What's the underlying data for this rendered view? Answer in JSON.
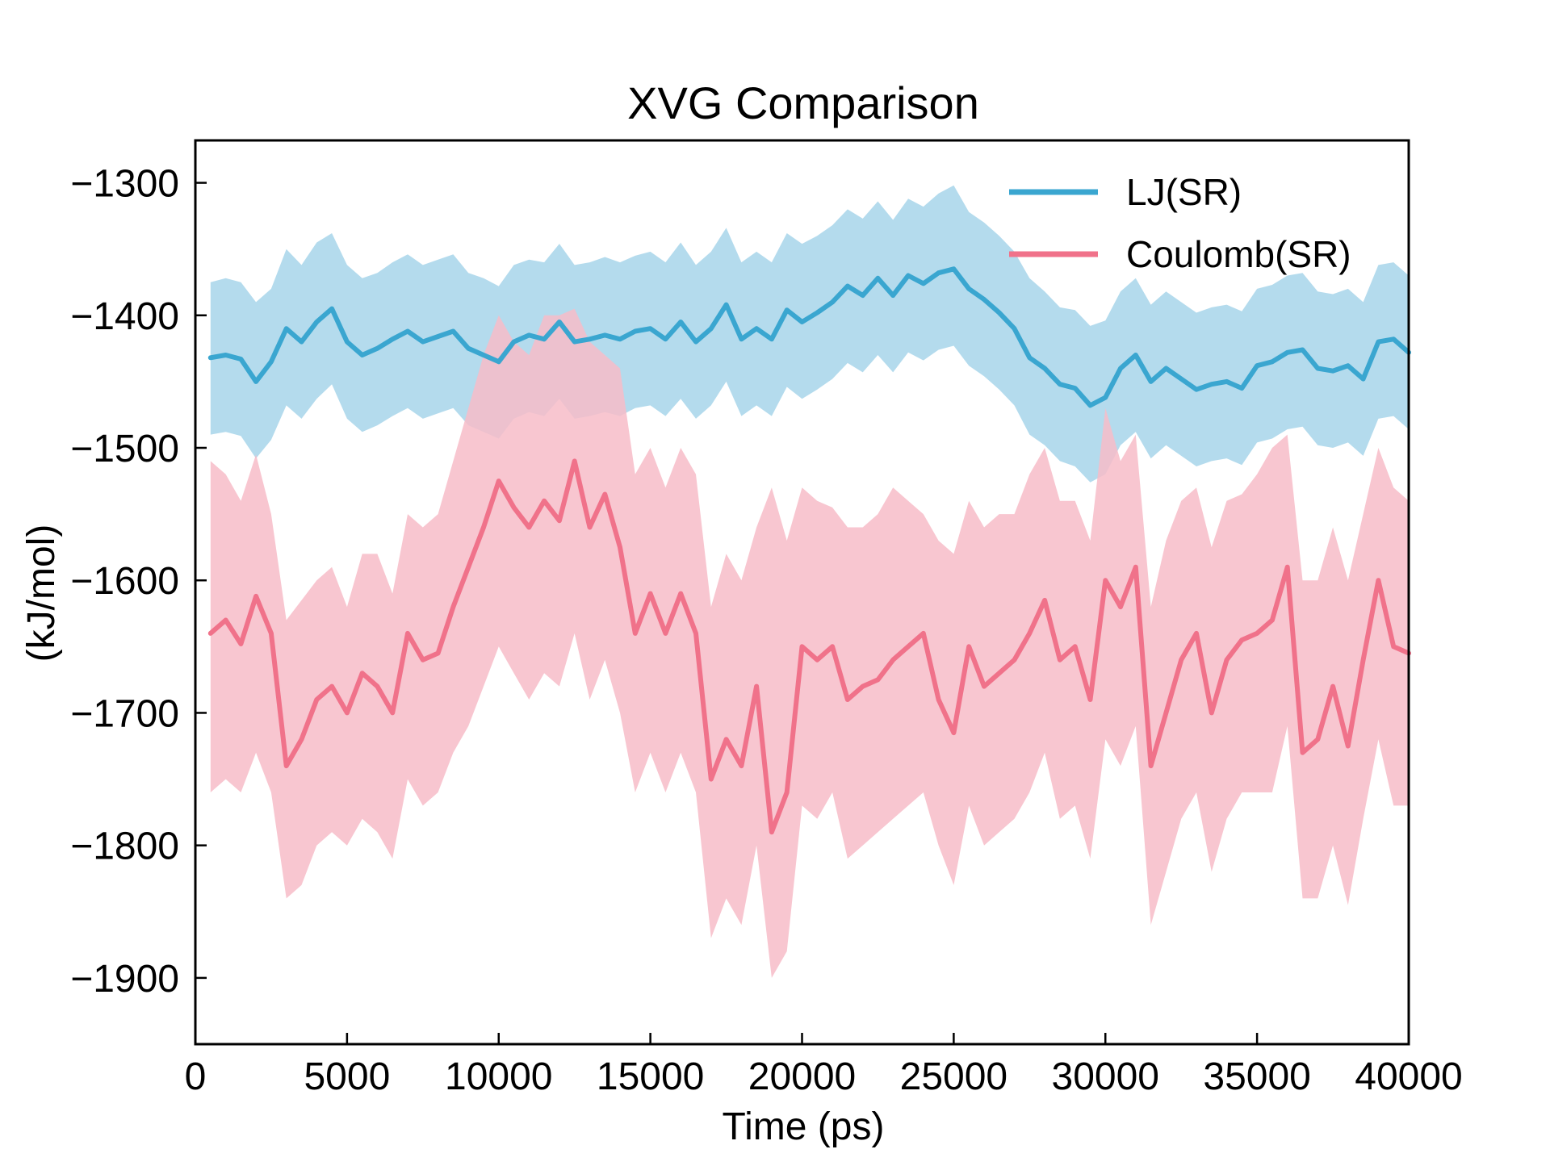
{
  "chart_data": {
    "type": "line",
    "title": "XVG Comparison",
    "xlabel": "Time (ps)",
    "ylabel": "(kJ/mol)",
    "xlim": [
      0,
      40000
    ],
    "ylim": [
      -1950,
      -1268
    ],
    "xticks": [
      0,
      5000,
      10000,
      15000,
      20000,
      25000,
      30000,
      35000,
      40000
    ],
    "xtick_labels": [
      "0",
      "5000",
      "10000",
      "15000",
      "20000",
      "25000",
      "30000",
      "35000",
      "40000"
    ],
    "yticks": [
      -1900,
      -1800,
      -1700,
      -1600,
      -1500,
      -1400,
      -1300
    ],
    "ytick_labels": [
      "−1900",
      "−1800",
      "−1700",
      "−1600",
      "−1500",
      "−1400",
      "−1300"
    ],
    "grid": false,
    "legend_position": "top-right",
    "series": [
      {
        "name": "LJ(SR)",
        "color": "#3aa6d0",
        "band_color": "#a7d5ea",
        "band_opacity": 0.85,
        "x": [
          500,
          1000,
          1500,
          2000,
          2500,
          3000,
          3500,
          4000,
          4500,
          5000,
          5500,
          6000,
          6500,
          7000,
          7500,
          8000,
          8500,
          9000,
          9500,
          10000,
          10500,
          11000,
          11500,
          12000,
          12500,
          13000,
          13500,
          14000,
          14500,
          15000,
          15500,
          16000,
          16500,
          17000,
          17500,
          18000,
          18500,
          19000,
          19500,
          20000,
          20500,
          21000,
          21500,
          22000,
          22500,
          23000,
          23500,
          24000,
          24500,
          25000,
          25500,
          26000,
          26500,
          27000,
          27500,
          28000,
          28500,
          29000,
          29500,
          30000,
          30500,
          31000,
          31500,
          32000,
          32500,
          33000,
          33500,
          34000,
          34500,
          35000,
          35500,
          36000,
          36500,
          37000,
          37500,
          38000,
          38500,
          39000,
          39500,
          40000
        ],
        "y": [
          -1432,
          -1430,
          -1433,
          -1450,
          -1435,
          -1410,
          -1420,
          -1405,
          -1395,
          -1420,
          -1430,
          -1425,
          -1418,
          -1412,
          -1420,
          -1416,
          -1412,
          -1425,
          -1430,
          -1435,
          -1420,
          -1415,
          -1418,
          -1405,
          -1420,
          -1418,
          -1415,
          -1418,
          -1412,
          -1410,
          -1418,
          -1405,
          -1420,
          -1410,
          -1392,
          -1418,
          -1410,
          -1418,
          -1396,
          -1405,
          -1398,
          -1390,
          -1378,
          -1385,
          -1372,
          -1385,
          -1370,
          -1376,
          -1368,
          -1365,
          -1380,
          -1388,
          -1398,
          -1410,
          -1432,
          -1440,
          -1452,
          -1455,
          -1468,
          -1462,
          -1440,
          -1430,
          -1450,
          -1440,
          -1448,
          -1456,
          -1452,
          -1450,
          -1455,
          -1438,
          -1435,
          -1428,
          -1426,
          -1440,
          -1442,
          -1438,
          -1448,
          -1420,
          -1418,
          -1428
        ],
        "upper": [
          -1375,
          -1372,
          -1375,
          -1390,
          -1380,
          -1350,
          -1362,
          -1345,
          -1338,
          -1362,
          -1372,
          -1368,
          -1360,
          -1354,
          -1362,
          -1358,
          -1354,
          -1368,
          -1372,
          -1378,
          -1362,
          -1358,
          -1360,
          -1346,
          -1362,
          -1360,
          -1356,
          -1360,
          -1355,
          -1352,
          -1360,
          -1345,
          -1362,
          -1352,
          -1334,
          -1360,
          -1352,
          -1360,
          -1338,
          -1346,
          -1340,
          -1332,
          -1320,
          -1327,
          -1314,
          -1328,
          -1312,
          -1318,
          -1308,
          -1302,
          -1322,
          -1330,
          -1340,
          -1352,
          -1372,
          -1382,
          -1394,
          -1396,
          -1408,
          -1404,
          -1382,
          -1372,
          -1392,
          -1382,
          -1390,
          -1398,
          -1394,
          -1392,
          -1397,
          -1380,
          -1377,
          -1370,
          -1368,
          -1382,
          -1384,
          -1380,
          -1390,
          -1362,
          -1360,
          -1370
        ],
        "lower": [
          -1490,
          -1488,
          -1491,
          -1508,
          -1494,
          -1468,
          -1478,
          -1463,
          -1452,
          -1478,
          -1488,
          -1483,
          -1476,
          -1470,
          -1478,
          -1474,
          -1470,
          -1483,
          -1488,
          -1493,
          -1478,
          -1473,
          -1476,
          -1463,
          -1478,
          -1476,
          -1473,
          -1476,
          -1470,
          -1468,
          -1476,
          -1463,
          -1478,
          -1468,
          -1450,
          -1476,
          -1468,
          -1476,
          -1454,
          -1463,
          -1456,
          -1448,
          -1436,
          -1443,
          -1430,
          -1443,
          -1428,
          -1434,
          -1426,
          -1423,
          -1438,
          -1446,
          -1456,
          -1468,
          -1490,
          -1498,
          -1510,
          -1514,
          -1526,
          -1520,
          -1498,
          -1488,
          -1508,
          -1498,
          -1506,
          -1514,
          -1510,
          -1508,
          -1513,
          -1496,
          -1493,
          -1486,
          -1484,
          -1498,
          -1500,
          -1496,
          -1506,
          -1478,
          -1476,
          -1486
        ]
      },
      {
        "name": "Coulomb(SR)",
        "color": "#f0728a",
        "band_color": "#f7bcc8",
        "band_opacity": 0.85,
        "x": [
          500,
          1000,
          1500,
          2000,
          2500,
          3000,
          3500,
          4000,
          4500,
          5000,
          5500,
          6000,
          6500,
          7000,
          7500,
          8000,
          8500,
          9000,
          9500,
          10000,
          10500,
          11000,
          11500,
          12000,
          12500,
          13000,
          13500,
          14000,
          14500,
          15000,
          15500,
          16000,
          16500,
          17000,
          17500,
          18000,
          18500,
          19000,
          19500,
          20000,
          20500,
          21000,
          21500,
          22000,
          22500,
          23000,
          23500,
          24000,
          24500,
          25000,
          25500,
          26000,
          26500,
          27000,
          27500,
          28000,
          28500,
          29000,
          29500,
          30000,
          30500,
          31000,
          31500,
          32000,
          32500,
          33000,
          33500,
          34000,
          34500,
          35000,
          35500,
          36000,
          36500,
          37000,
          37500,
          38000,
          38500,
          39000,
          39500,
          40000
        ],
        "y": [
          -1640,
          -1630,
          -1648,
          -1612,
          -1640,
          -1740,
          -1720,
          -1690,
          -1680,
          -1700,
          -1670,
          -1680,
          -1700,
          -1640,
          -1660,
          -1655,
          -1620,
          -1590,
          -1560,
          -1525,
          -1545,
          -1560,
          -1540,
          -1555,
          -1510,
          -1560,
          -1535,
          -1575,
          -1640,
          -1610,
          -1640,
          -1610,
          -1640,
          -1750,
          -1720,
          -1740,
          -1680,
          -1790,
          -1760,
          -1650,
          -1660,
          -1650,
          -1690,
          -1680,
          -1675,
          -1660,
          -1650,
          -1640,
          -1690,
          -1715,
          -1650,
          -1680,
          -1670,
          -1660,
          -1640,
          -1615,
          -1660,
          -1650,
          -1690,
          -1600,
          -1620,
          -1590,
          -1740,
          -1700,
          -1660,
          -1640,
          -1700,
          -1660,
          -1645,
          -1640,
          -1630,
          -1590,
          -1730,
          -1720,
          -1680,
          -1725,
          -1660,
          -1600,
          -1650,
          -1655
        ],
        "upper": [
          -1510,
          -1520,
          -1540,
          -1505,
          -1550,
          -1630,
          -1615,
          -1600,
          -1590,
          -1620,
          -1580,
          -1580,
          -1610,
          -1550,
          -1560,
          -1550,
          -1510,
          -1470,
          -1430,
          -1400,
          -1420,
          -1430,
          -1400,
          -1400,
          -1395,
          -1420,
          -1430,
          -1440,
          -1520,
          -1500,
          -1530,
          -1500,
          -1520,
          -1620,
          -1580,
          -1600,
          -1560,
          -1530,
          -1570,
          -1530,
          -1540,
          -1545,
          -1560,
          -1560,
          -1550,
          -1530,
          -1540,
          -1550,
          -1570,
          -1580,
          -1540,
          -1560,
          -1550,
          -1550,
          -1520,
          -1500,
          -1540,
          -1540,
          -1570,
          -1470,
          -1510,
          -1490,
          -1620,
          -1570,
          -1540,
          -1530,
          -1575,
          -1540,
          -1535,
          -1520,
          -1500,
          -1490,
          -1600,
          -1600,
          -1560,
          -1600,
          -1550,
          -1500,
          -1530,
          -1540
        ],
        "lower": [
          -1760,
          -1750,
          -1760,
          -1730,
          -1760,
          -1840,
          -1830,
          -1800,
          -1790,
          -1800,
          -1780,
          -1790,
          -1810,
          -1750,
          -1770,
          -1760,
          -1730,
          -1710,
          -1680,
          -1650,
          -1670,
          -1690,
          -1670,
          -1680,
          -1640,
          -1690,
          -1660,
          -1700,
          -1760,
          -1730,
          -1760,
          -1730,
          -1760,
          -1870,
          -1840,
          -1860,
          -1800,
          -1900,
          -1880,
          -1770,
          -1780,
          -1760,
          -1810,
          -1800,
          -1790,
          -1780,
          -1770,
          -1760,
          -1800,
          -1830,
          -1770,
          -1800,
          -1790,
          -1780,
          -1760,
          -1730,
          -1780,
          -1770,
          -1810,
          -1720,
          -1740,
          -1710,
          -1860,
          -1820,
          -1780,
          -1760,
          -1820,
          -1780,
          -1760,
          -1760,
          -1760,
          -1710,
          -1840,
          -1840,
          -1800,
          -1845,
          -1780,
          -1720,
          -1770,
          -1770
        ]
      }
    ]
  }
}
